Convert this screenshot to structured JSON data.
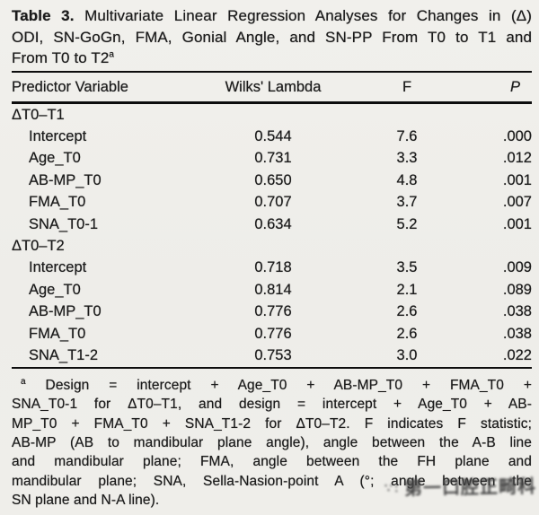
{
  "page": {
    "background": "#efeeea",
    "text_color": "#1b1b1b",
    "rule_color": "#0d0d0d",
    "watermark_color": "#454545"
  },
  "title": {
    "prefix": "Table 3.",
    "line1_rest": " Multivariate Linear Regression Analyses for Changes in (Δ)",
    "line2": "ODI, SN-GoGn, FMA, Gonial Angle, and SN-PP From T0 to T1 and",
    "line3": "From T0 to T2",
    "footnote_marker": "a"
  },
  "table": {
    "columns": {
      "predictor": "Predictor Variable",
      "wilks": "Wilks' Lambda",
      "f": "F",
      "p": "P"
    },
    "sections": [
      {
        "label": "ΔT0–T1",
        "rows": [
          {
            "predictor": "Intercept",
            "wilks": "0.544",
            "f": "7.6",
            "p": ".000"
          },
          {
            "predictor": "Age_T0",
            "wilks": "0.731",
            "f": "3.3",
            "p": ".012"
          },
          {
            "predictor": "AB-MP_T0",
            "wilks": "0.650",
            "f": "4.8",
            "p": ".001"
          },
          {
            "predictor": "FMA_T0",
            "wilks": "0.707",
            "f": "3.7",
            "p": ".007"
          },
          {
            "predictor": "SNA_T0-1",
            "wilks": "0.634",
            "f": "5.2",
            "p": ".001"
          }
        ]
      },
      {
        "label": "ΔT0–T2",
        "rows": [
          {
            "predictor": "Intercept",
            "wilks": "0.718",
            "f": "3.5",
            "p": ".009"
          },
          {
            "predictor": "Age_T0",
            "wilks": "0.814",
            "f": "2.1",
            "p": ".089"
          },
          {
            "predictor": "AB-MP_T0",
            "wilks": "0.776",
            "f": "2.6",
            "p": ".038"
          },
          {
            "predictor": "FMA_T0",
            "wilks": "0.776",
            "f": "2.6",
            "p": ".038"
          },
          {
            "predictor": "SNA_T1-2",
            "wilks": "0.753",
            "f": "3.0",
            "p": ".022"
          }
        ]
      }
    ]
  },
  "footnote": {
    "marker": "a",
    "lines": [
      "Design = intercept + Age_T0 + AB-MP_T0 + FMA_T0 +",
      "SNA_T0-1 for ΔT0–T1, and design = intercept + Age_T0 + AB-",
      "MP_T0 + FMA_T0 + SNA_T1-2 for ΔT0–T2. F indicates F statistic;",
      "AB-MP (AB to mandibular plane angle), angle between the A-B line",
      "and mandibular plane; FMA, angle between the FH plane and",
      "mandibular plane; SNA, Sella-Nasion-point A (°; angle between the",
      "SN plane and N-A line)."
    ],
    "full_text": "Design = intercept + Age_T0 + AB-MP_T0 + FMA_T0 + SNA_T0-1 for ΔT0–T1, and design = intercept + Age_T0 + AB-MP_T0 + FMA_T0 + SNA_T1-2 for ΔT0–T2. F indicates F statistic; AB-MP (AB to mandibular plane angle), angle between the A-B line and mandibular plane; FMA, angle between the FH plane and mandibular plane; SNA, Sella-Nasion-point A (°; angle between the SN plane and N-A line)."
  },
  "watermark": {
    "prefix": "∵:",
    "text": "第一口腔正畸科"
  }
}
